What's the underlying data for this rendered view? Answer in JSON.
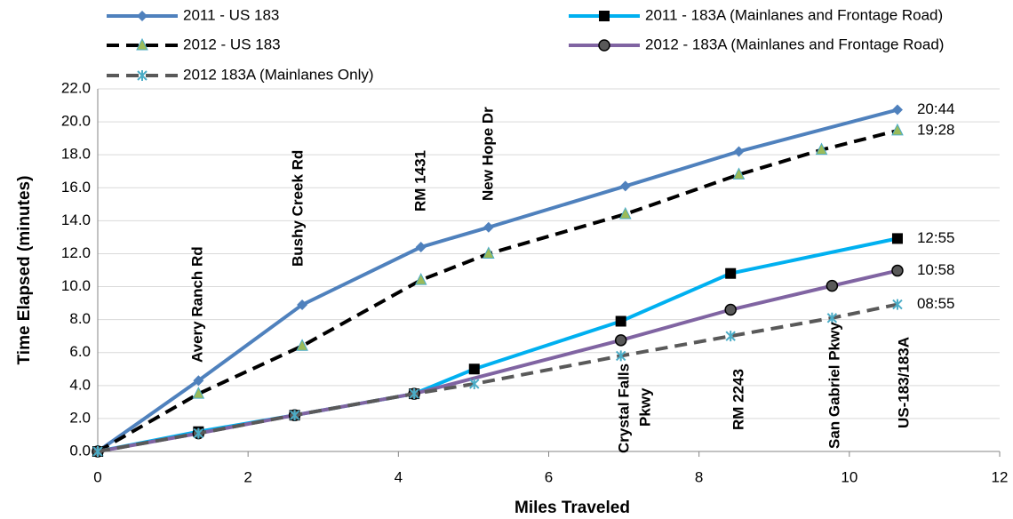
{
  "chart_data": {
    "type": "line",
    "xlabel": "Miles Traveled",
    "ylabel": "Time Elapsed (minutes)",
    "xlim": [
      0,
      12
    ],
    "xticks": [
      0,
      2,
      4,
      6,
      8,
      10,
      12
    ],
    "ylim": [
      0,
      22
    ],
    "yticks": [
      {
        "value": 0,
        "label": "0.0"
      },
      {
        "value": 2,
        "label": "2.0"
      },
      {
        "value": 4,
        "label": "4.0"
      },
      {
        "value": 6,
        "label": "6.0"
      },
      {
        "value": 8,
        "label": "8.0"
      },
      {
        "value": 10,
        "label": "10.0"
      },
      {
        "value": 12,
        "label": "12.0"
      },
      {
        "value": 14,
        "label": "14.0"
      },
      {
        "value": 16,
        "label": "16.0"
      },
      {
        "value": 18,
        "label": "18.0"
      },
      {
        "value": 20,
        "label": "20.0"
      },
      {
        "value": 22,
        "label": "22.0"
      }
    ],
    "grid": true,
    "series": [
      {
        "name": "2011 - US 183",
        "color": "#4f81bd",
        "dashed": false,
        "marker": "diamond",
        "x": [
          0,
          1.34,
          2.72,
          4.3,
          5.2,
          7.02,
          8.53,
          10.64
        ],
        "values": [
          0,
          4.3,
          8.9,
          12.4,
          13.6,
          16.1,
          18.2,
          20.73
        ],
        "value_labels": [
          null,
          null,
          null,
          null,
          null,
          null,
          null,
          "20:44"
        ]
      },
      {
        "name": "2012 - US 183",
        "color": "#000000",
        "dashed": true,
        "marker": "triangle",
        "x": [
          0,
          1.34,
          2.72,
          4.3,
          5.2,
          7.02,
          8.53,
          9.63,
          10.64
        ],
        "values": [
          0,
          3.5,
          6.4,
          10.4,
          12.0,
          14.4,
          16.8,
          18.3,
          19.47
        ],
        "value_labels": [
          null,
          null,
          null,
          null,
          null,
          null,
          null,
          null,
          "19:28"
        ]
      },
      {
        "name": "2011 - 183A (Mainlanes and Frontage Road)",
        "color": "#00b0f0",
        "dashed": false,
        "marker": "square",
        "x": [
          0,
          1.34,
          2.62,
          4.21,
          5.01,
          6.96,
          8.42,
          10.64
        ],
        "values": [
          0,
          1.2,
          2.2,
          3.5,
          5.0,
          7.9,
          10.8,
          12.92
        ],
        "value_labels": [
          null,
          null,
          null,
          null,
          null,
          null,
          null,
          "12:55"
        ]
      },
      {
        "name": "2012 - 183A (Mainlanes and Frontage Road)",
        "color": "#8064a2",
        "dashed": false,
        "marker": "circle",
        "x": [
          0,
          1.34,
          2.62,
          4.21,
          6.96,
          8.42,
          9.77,
          10.64
        ],
        "values": [
          0,
          1.1,
          2.2,
          3.5,
          6.75,
          8.6,
          10.05,
          10.97
        ],
        "value_labels": [
          null,
          null,
          null,
          null,
          null,
          null,
          null,
          "10:58"
        ]
      },
      {
        "name": "2012 183A (Mainlanes Only)",
        "color": "#595959",
        "dashed": true,
        "marker": "asterisk",
        "x": [
          0,
          1.34,
          2.62,
          4.21,
          5.01,
          6.96,
          8.42,
          9.77,
          10.64
        ],
        "values": [
          0,
          1.1,
          2.2,
          3.5,
          4.1,
          5.8,
          7.0,
          8.1,
          8.92
        ],
        "value_labels": [
          null,
          null,
          null,
          null,
          null,
          null,
          null,
          null,
          "08:55"
        ]
      }
    ],
    "annotations": [
      "Avery Ranch Rd",
      "Bushy Creek Rd",
      "RM 1431",
      "New Hope Dr",
      "Crystal Falls",
      "Pkwy",
      "RM 2243",
      "San Gabriel Pkwy",
      "US-183/183A"
    ]
  }
}
